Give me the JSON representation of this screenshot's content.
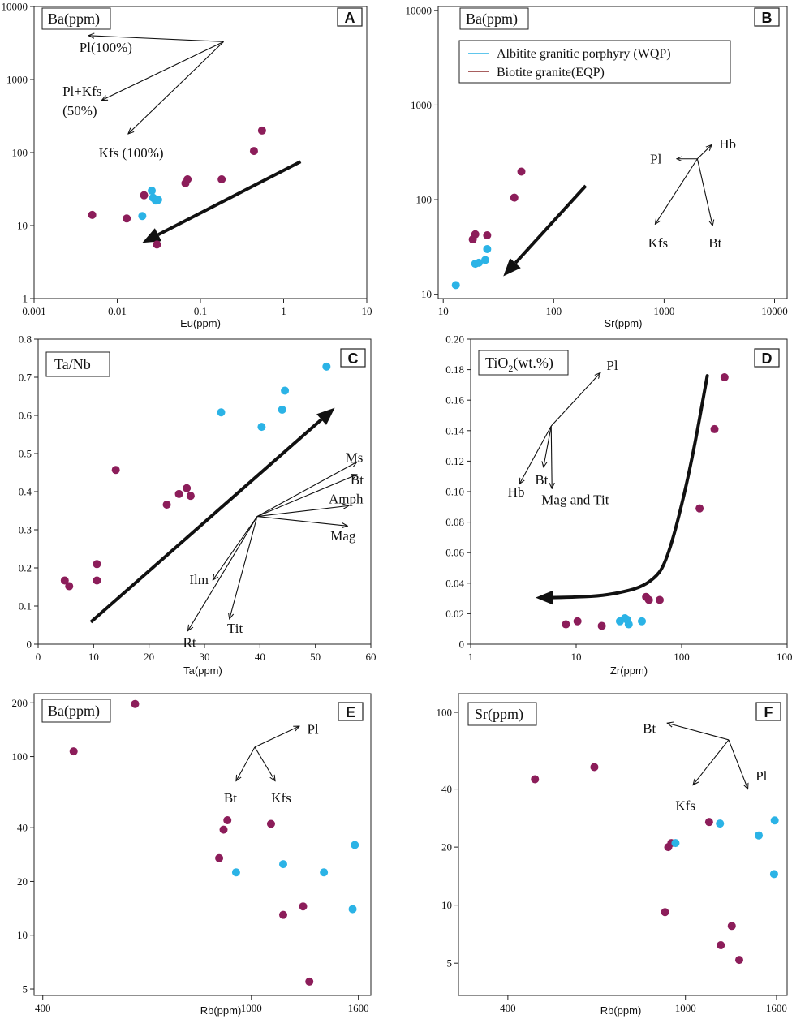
{
  "colors": {
    "eqp": "#8c1d5a",
    "wqp": "#2bb3e6",
    "legend_eqp": "#8b2a2a",
    "legend_wqp": "#2bb3e6"
  },
  "legend": {
    "wqp_label": "Albitite granitic porphyry (WQP)",
    "eqp_label": "Biotite granite(EQP)"
  },
  "panels": [
    {
      "id": "A",
      "ylabel": "Ba(ppm)",
      "xlabel": "Eu(ppm)",
      "xscale": "log",
      "yscale": "log",
      "xlim": [
        0.001,
        10
      ],
      "ylim": [
        1,
        10000
      ],
      "xticks": [
        {
          "v": 0.001,
          "t": "0.001"
        },
        {
          "v": 0.01,
          "t": "0.01"
        },
        {
          "v": 0.1,
          "t": "0.1"
        },
        {
          "v": 1,
          "t": "1"
        },
        {
          "v": 10,
          "t": "10"
        }
      ],
      "yticks": [
        {
          "v": 1,
          "t": "1"
        },
        {
          "v": 10,
          "t": "10"
        },
        {
          "v": 100,
          "t": "100"
        },
        {
          "v": 1000,
          "t": "1000"
        },
        {
          "v": 10000,
          "t": "10000"
        }
      ],
      "eqp": [
        [
          0.005,
          14
        ],
        [
          0.013,
          12.5
        ],
        [
          0.021,
          26
        ],
        [
          0.03,
          5.5
        ],
        [
          0.066,
          38
        ],
        [
          0.07,
          43
        ],
        [
          0.18,
          43
        ],
        [
          0.44,
          105
        ],
        [
          0.55,
          200
        ]
      ],
      "wqp": [
        [
          0.02,
          13.5
        ],
        [
          0.026,
          30
        ],
        [
          0.027,
          24
        ],
        [
          0.029,
          22
        ],
        [
          0.031,
          22.5
        ]
      ],
      "arrow": {
        "from": [
          1.6,
          75
        ],
        "to": [
          0.02,
          5.8
        ]
      },
      "vectors": [
        {
          "from": [
            0.19,
            3300
          ],
          "to": [
            0.0045,
            4000
          ],
          "label": "Pl(100%)",
          "lx": 0.0035,
          "ly": 2800,
          "anchor": "start"
        },
        {
          "from": [
            0.19,
            3300
          ],
          "to": [
            0.0065,
            520
          ],
          "label": "Pl+Kfs",
          "lx": 0.0022,
          "ly": 700,
          "anchor": "start"
        },
        {
          "from": [
            0.19,
            3300
          ],
          "to": [
            0.0135,
            180
          ],
          "label": "Kfs (100%)",
          "lx": 0.006,
          "ly": 100,
          "anchor": "start"
        }
      ],
      "extra_labels": [
        {
          "text": "(50%)",
          "x": 0.0022,
          "y": 380
        }
      ]
    },
    {
      "id": "B",
      "ylabel": "Ba(ppm)",
      "xlabel": "Sr(ppm)",
      "xscale": "log",
      "yscale": "log",
      "xlim": [
        9,
        13000
      ],
      "ylim": [
        9,
        11000
      ],
      "xticks": [
        {
          "v": 10,
          "t": "10"
        },
        {
          "v": 100,
          "t": "100"
        },
        {
          "v": 1000,
          "t": "1000"
        },
        {
          "v": 10000,
          "t": "10000"
        }
      ],
      "yticks": [
        {
          "v": 10,
          "t": "10"
        },
        {
          "v": 100,
          "t": "100"
        },
        {
          "v": 1000,
          "t": "1000"
        },
        {
          "v": 10000,
          "t": "10000"
        }
      ],
      "eqp": [
        [
          18.5,
          38
        ],
        [
          19.5,
          43
        ],
        [
          25,
          42
        ],
        [
          44,
          105
        ],
        [
          51,
          198
        ]
      ],
      "wqp": [
        [
          13,
          12.5
        ],
        [
          19.5,
          21
        ],
        [
          21,
          21.5
        ],
        [
          24,
          23
        ],
        [
          25,
          30
        ]
      ],
      "arrow": {
        "from": [
          195,
          140
        ],
        "to": [
          35,
          15.5
        ]
      },
      "vectors": [
        {
          "from": [
            2000,
            270
          ],
          "to": [
            1300,
            270
          ],
          "label": "Pl",
          "lx": 950,
          "ly": 270,
          "anchor": "end"
        },
        {
          "from": [
            2000,
            270
          ],
          "to": [
            2700,
            380
          ],
          "label": "Hb",
          "lx": 3150,
          "ly": 390,
          "anchor": "start"
        },
        {
          "from": [
            2000,
            270
          ],
          "to": [
            830,
            55
          ],
          "label": "Kfs",
          "lx": 880,
          "ly": 35,
          "anchor": "middle"
        },
        {
          "from": [
            2000,
            270
          ],
          "to": [
            2750,
            53
          ],
          "label": "Bt",
          "lx": 2900,
          "ly": 35,
          "anchor": "middle"
        }
      ],
      "extra_labels": []
    },
    {
      "id": "C",
      "ylabel": "Ta/Nb",
      "xlabel": "Ta(ppm)",
      "xscale": "linear",
      "yscale": "linear",
      "xlim": [
        0,
        60
      ],
      "ylim": [
        0,
        0.8
      ],
      "xticks": [
        {
          "v": 0,
          "t": "0"
        },
        {
          "v": 10,
          "t": "10"
        },
        {
          "v": 20,
          "t": "20"
        },
        {
          "v": 30,
          "t": "30"
        },
        {
          "v": 40,
          "t": "40"
        },
        {
          "v": 50,
          "t": "50"
        },
        {
          "v": 60,
          "t": "60"
        }
      ],
      "yticks": [
        {
          "v": 0,
          "t": "0"
        },
        {
          "v": 0.1,
          "t": "0.1"
        },
        {
          "v": 0.2,
          "t": "0.2"
        },
        {
          "v": 0.3,
          "t": "0.3"
        },
        {
          "v": 0.4,
          "t": "0.4"
        },
        {
          "v": 0.5,
          "t": "0.5"
        },
        {
          "v": 0.6,
          "t": "0.6"
        },
        {
          "v": 0.7,
          "t": "0.7"
        },
        {
          "v": 0.8,
          "t": "0.8"
        }
      ],
      "eqp": [
        [
          4.8,
          0.167
        ],
        [
          5.6,
          0.152
        ],
        [
          10.6,
          0.21
        ],
        [
          10.6,
          0.167
        ],
        [
          14,
          0.457
        ],
        [
          23.2,
          0.366
        ],
        [
          25.4,
          0.394
        ],
        [
          26.8,
          0.409
        ],
        [
          27.5,
          0.389
        ]
      ],
      "wqp": [
        [
          33,
          0.608
        ],
        [
          40.3,
          0.57
        ],
        [
          44,
          0.615
        ],
        [
          44.5,
          0.665
        ],
        [
          52,
          0.728
        ]
      ],
      "arrow": {
        "from": [
          9.5,
          0.058
        ],
        "to": [
          53.5,
          0.62
        ]
      },
      "vectors": [
        {
          "from": [
            39.5,
            0.335
          ],
          "to": [
            57.5,
            0.478
          ],
          "label": "Ms",
          "lx": 57,
          "ly": 0.49,
          "anchor": "middle"
        },
        {
          "from": [
            39.5,
            0.335
          ],
          "to": [
            57.5,
            0.445
          ],
          "label": "Bt",
          "lx": 57.5,
          "ly": 0.432,
          "anchor": "middle"
        },
        {
          "from": [
            39.5,
            0.335
          ],
          "to": [
            56,
            0.363
          ],
          "label": "Amph",
          "lx": 55.5,
          "ly": 0.382,
          "anchor": "middle"
        },
        {
          "from": [
            39.5,
            0.335
          ],
          "to": [
            55.8,
            0.31
          ],
          "label": "Mag",
          "lx": 55,
          "ly": 0.285,
          "anchor": "middle"
        },
        {
          "from": [
            39.5,
            0.335
          ],
          "to": [
            31.5,
            0.168
          ],
          "label": "Ilm",
          "lx": 29,
          "ly": 0.17,
          "anchor": "middle"
        },
        {
          "from": [
            39.5,
            0.335
          ],
          "to": [
            27,
            0.035
          ],
          "label": "Rt",
          "lx": 27.3,
          "ly": 0.005,
          "anchor": "middle"
        },
        {
          "from": [
            39.5,
            0.335
          ],
          "to": [
            34.5,
            0.066
          ],
          "label": "Tit",
          "lx": 35.5,
          "ly": 0.043,
          "anchor": "middle"
        }
      ],
      "extra_labels": []
    },
    {
      "id": "D",
      "ylabel": "TiO",
      "ylabel_sub": "2",
      "ylabel_tail": "(wt.%)",
      "xlabel": "Zr(ppm)",
      "xscale": "log",
      "yscale": "linear",
      "xlim": [
        1,
        1000
      ],
      "ylim": [
        0,
        0.2
      ],
      "xticks": [
        {
          "v": 1,
          "t": "1"
        },
        {
          "v": 10,
          "t": "10"
        },
        {
          "v": 100,
          "t": "100"
        },
        {
          "v": 1000,
          "t": "1000"
        }
      ],
      "yticks": [
        {
          "v": 0,
          "t": "0"
        },
        {
          "v": 0.02,
          "t": "0.02"
        },
        {
          "v": 0.04,
          "t": "0.04"
        },
        {
          "v": 0.06,
          "t": "0.06"
        },
        {
          "v": 0.08,
          "t": "0.08"
        },
        {
          "v": 0.1,
          "t": "0.10"
        },
        {
          "v": 0.12,
          "t": "0.12"
        },
        {
          "v": 0.14,
          "t": "0.14"
        },
        {
          "v": 0.16,
          "t": "0.16"
        },
        {
          "v": 0.18,
          "t": "0.18"
        },
        {
          "v": 0.2,
          "t": "0.20"
        }
      ],
      "eqp": [
        [
          8,
          0.013
        ],
        [
          10.3,
          0.015
        ],
        [
          17.5,
          0.012
        ],
        [
          46,
          0.031
        ],
        [
          49,
          0.029
        ],
        [
          62,
          0.029
        ],
        [
          148,
          0.089
        ],
        [
          205,
          0.141
        ],
        [
          255,
          0.175
        ]
      ],
      "wqp": [
        [
          26,
          0.015
        ],
        [
          29,
          0.017
        ],
        [
          30.5,
          0.016
        ],
        [
          31.5,
          0.013
        ],
        [
          42,
          0.015
        ]
      ],
      "curve": [
        [
          175,
          0.176
        ],
        [
          125,
          0.12
        ],
        [
          88,
          0.075
        ],
        [
          68,
          0.051
        ],
        [
          55,
          0.043
        ],
        [
          40,
          0.037
        ],
        [
          25,
          0.0335
        ],
        [
          16,
          0.0315
        ],
        [
          9,
          0.0308
        ],
        [
          5.8,
          0.0305
        ]
      ],
      "curve_head": [
        5.1,
        0.0305
      ],
      "vectors": [
        {
          "from": [
            5.8,
            0.143
          ],
          "to": [
            17,
            0.178
          ],
          "label": "Pl",
          "lx": 22,
          "ly": 0.183,
          "anchor": "middle"
        },
        {
          "from": [
            5.8,
            0.143
          ],
          "to": [
            2.9,
            0.105
          ],
          "label": "Hb",
          "lx": 2.7,
          "ly": 0.1,
          "anchor": "middle"
        },
        {
          "from": [
            5.8,
            0.143
          ],
          "to": [
            4.9,
            0.116
          ],
          "label": "Bt",
          "lx": 4.7,
          "ly": 0.108,
          "anchor": "middle"
        },
        {
          "from": [
            5.8,
            0.143
          ],
          "to": [
            5.9,
            0.102
          ],
          "label": "Mag and Tit",
          "lx": 9.8,
          "ly": 0.095,
          "anchor": "middle"
        }
      ],
      "extra_labels": []
    },
    {
      "id": "E",
      "ylabel": "Ba(ppm)",
      "xlabel": "Rb(ppm)",
      "xscale": "log",
      "yscale": "log",
      "xlim": [
        385,
        1690
      ],
      "ylim": [
        4.6,
        225
      ],
      "xticks": [
        {
          "v": 400,
          "t": "400"
        },
        {
          "v": 1000,
          "t": "1000"
        },
        {
          "v": 1600,
          "t": "1600"
        }
      ],
      "yticks": [
        {
          "v": 5,
          "t": "5"
        },
        {
          "v": 10,
          "t": "10"
        },
        {
          "v": 20,
          "t": "20"
        },
        {
          "v": 40,
          "t": "40"
        },
        {
          "v": 100,
          "t": "100"
        },
        {
          "v": 200,
          "t": "200"
        }
      ],
      "eqp": [
        [
          458,
          107
        ],
        [
          600,
          197
        ],
        [
          868,
          27
        ],
        [
          885,
          39
        ],
        [
          900,
          44
        ],
        [
          1090,
          42
        ],
        [
          1150,
          13
        ],
        [
          1255,
          14.5
        ],
        [
          1290,
          5.5
        ]
      ],
      "wqp": [
        [
          935,
          22.5
        ],
        [
          1150,
          25
        ],
        [
          1375,
          22.5
        ],
        [
          1560,
          14
        ],
        [
          1575,
          32
        ]
      ],
      "vectors": [
        {
          "from": [
            1015,
            113
          ],
          "to": [
            1235,
            148
          ],
          "label": "Pl",
          "lx": 1310,
          "ly": 143,
          "anchor": "middle"
        },
        {
          "from": [
            1015,
            113
          ],
          "to": [
            935,
            73
          ],
          "label": "Bt",
          "lx": 912,
          "ly": 59,
          "anchor": "middle"
        },
        {
          "from": [
            1015,
            113
          ],
          "to": [
            1110,
            73
          ],
          "label": "Kfs",
          "lx": 1140,
          "ly": 59,
          "anchor": "middle"
        }
      ],
      "extra_labels": []
    },
    {
      "id": "F",
      "ylabel": "Sr(ppm)",
      "xlabel": "Rb(ppm)",
      "xscale": "log",
      "yscale": "log",
      "xlim": [
        310,
        1690
      ],
      "ylim": [
        3.4,
        125
      ],
      "xticks": [
        {
          "v": 400,
          "t": "400"
        },
        {
          "v": 1000,
          "t": "1000"
        },
        {
          "v": 1600,
          "t": "1600"
        }
      ],
      "yticks": [
        {
          "v": 5,
          "t": "5"
        },
        {
          "v": 10,
          "t": "10"
        },
        {
          "v": 20,
          "t": "20"
        },
        {
          "v": 40,
          "t": "40"
        },
        {
          "v": 100,
          "t": "100"
        }
      ],
      "eqp": [
        [
          460,
          45
        ],
        [
          625,
          52
        ],
        [
          900,
          9.2
        ],
        [
          915,
          20
        ],
        [
          930,
          21
        ],
        [
          1130,
          27
        ],
        [
          1200,
          6.2
        ],
        [
          1270,
          7.8
        ],
        [
          1320,
          5.2
        ]
      ],
      "wqp": [
        [
          950,
          21
        ],
        [
          1195,
          26.5
        ],
        [
          1460,
          23
        ],
        [
          1580,
          14.5
        ],
        [
          1585,
          27.5
        ]
      ],
      "vectors": [
        {
          "from": [
            1250,
            72
          ],
          "to": [
            910,
            88
          ],
          "label": "Bt",
          "lx": 830,
          "ly": 83,
          "anchor": "middle"
        },
        {
          "from": [
            1250,
            72
          ],
          "to": [
            1040,
            42
          ],
          "label": "Kfs",
          "lx": 1000,
          "ly": 33,
          "anchor": "middle"
        },
        {
          "from": [
            1250,
            72
          ],
          "to": [
            1380,
            40
          ],
          "label": "Pl",
          "lx": 1480,
          "ly": 47,
          "anchor": "middle"
        }
      ],
      "extra_labels": []
    }
  ]
}
